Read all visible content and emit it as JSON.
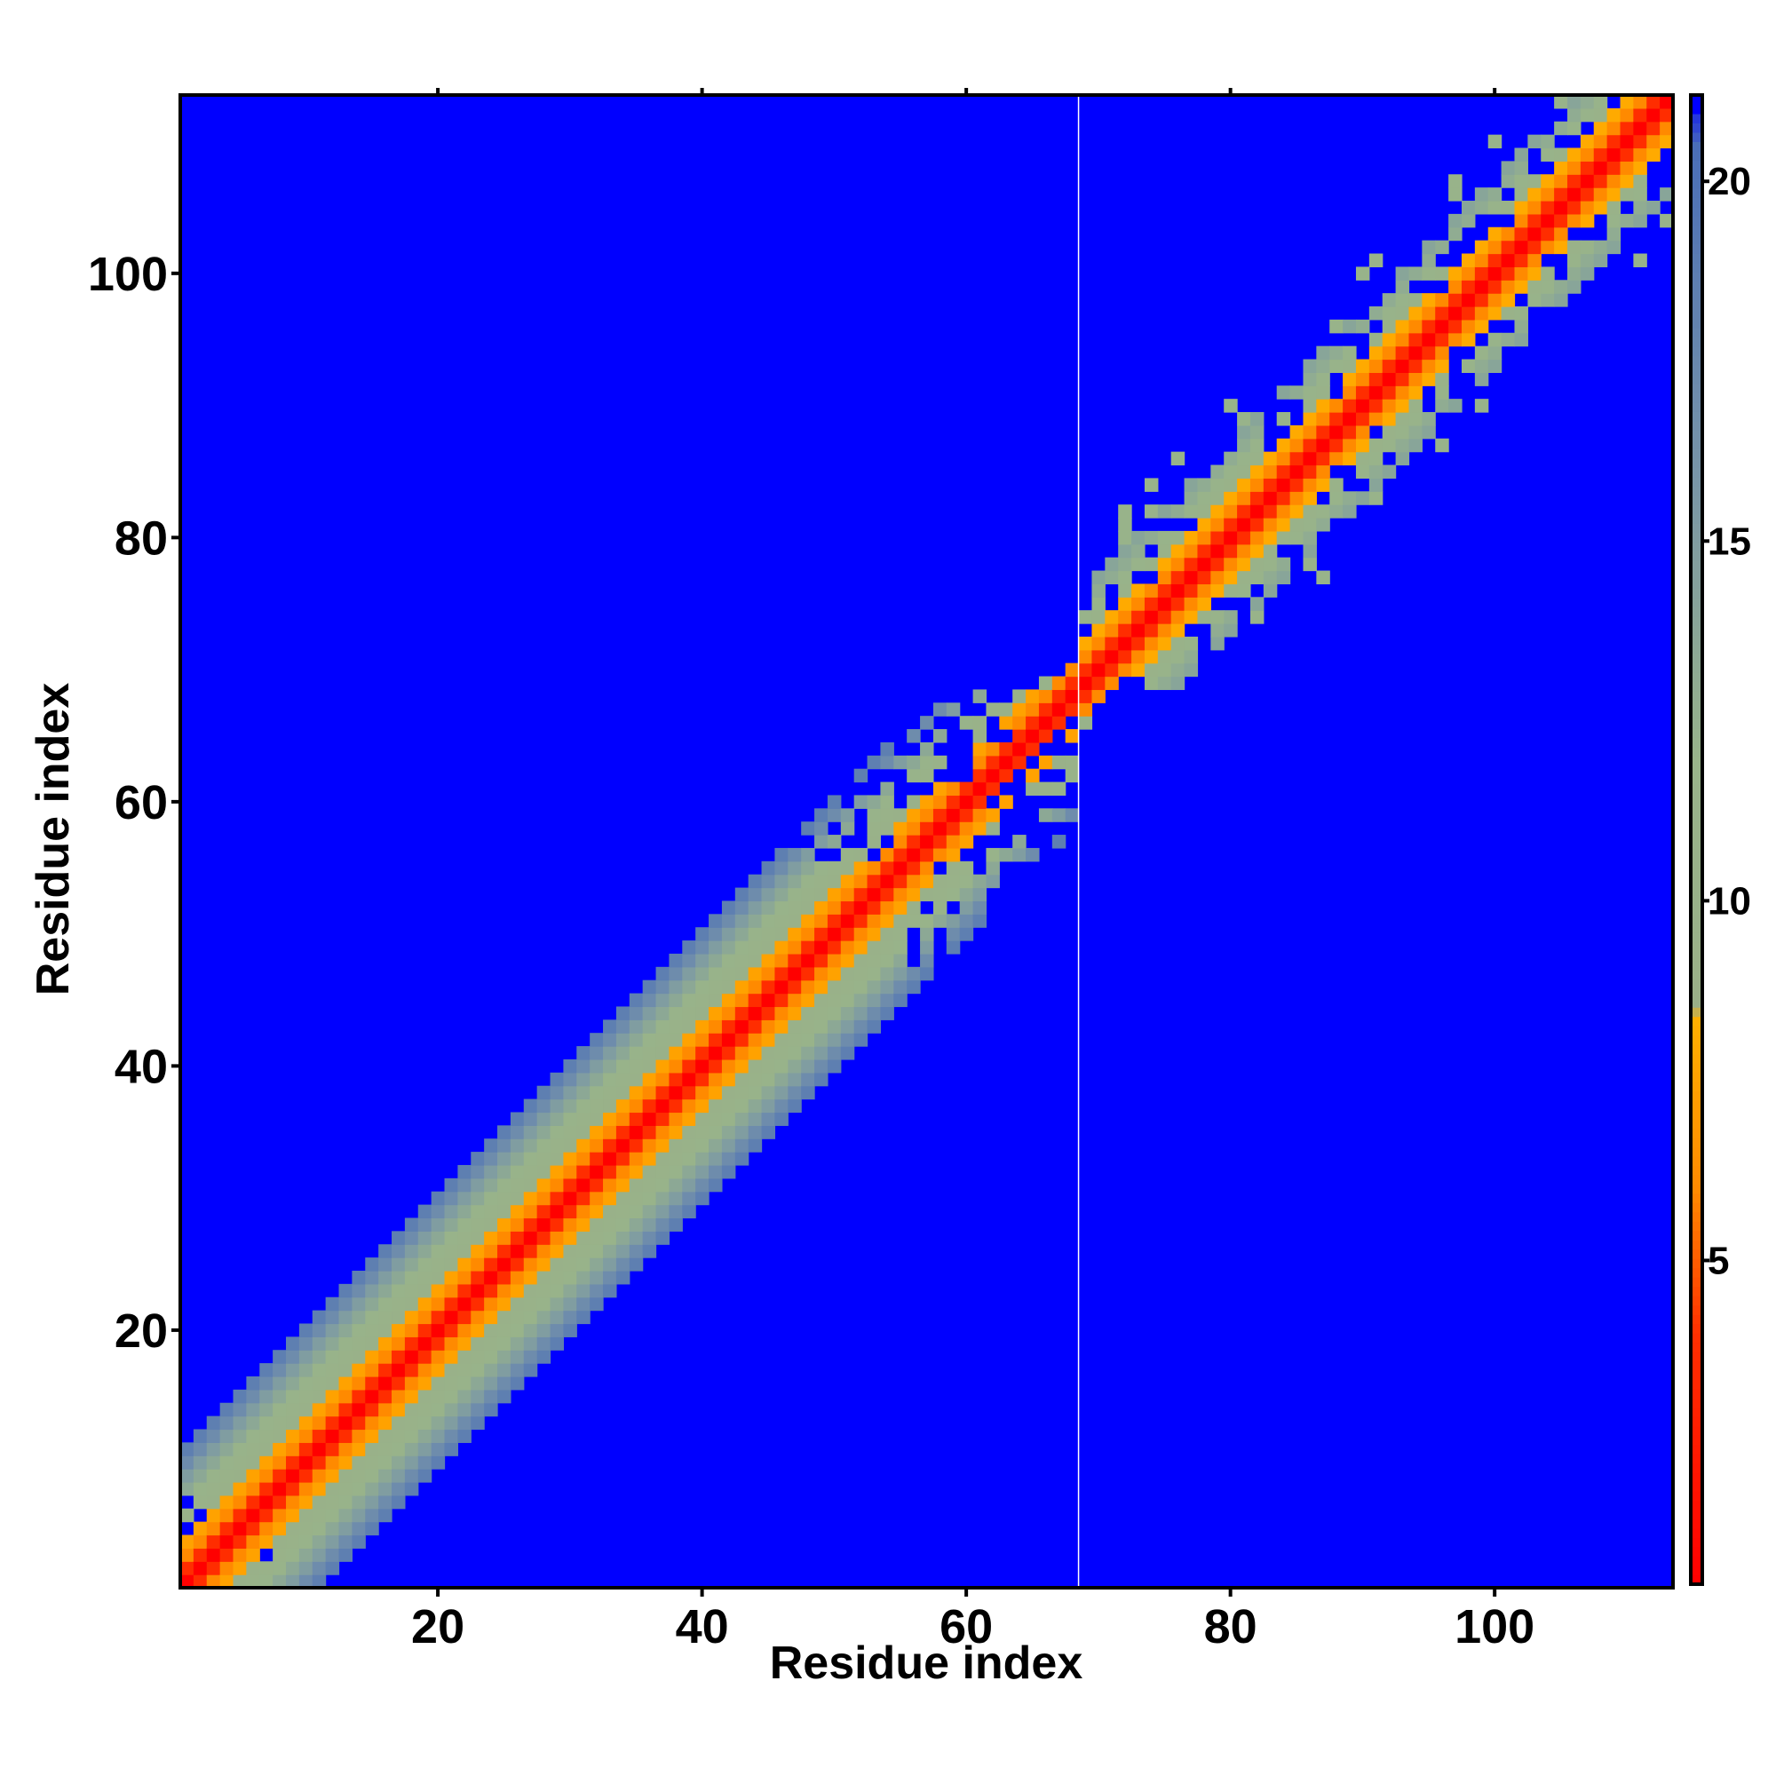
{
  "chart_data": {
    "type": "heatmap",
    "title": "",
    "xlabel": "Residue index",
    "ylabel": "Residue index",
    "n_residues": 113,
    "xlim": [
      0.5,
      113.5
    ],
    "ylim": [
      0.5,
      113.5
    ],
    "x_ticks": [
      20,
      40,
      60,
      80,
      100
    ],
    "y_ticks": [
      20,
      40,
      60,
      80,
      100
    ],
    "grid": false,
    "gap_column": 68.5,
    "colorbar": {
      "position": "right",
      "range": [
        0.5,
        21.2
      ],
      "ticks": [
        5,
        10,
        15,
        20
      ],
      "color_stops": [
        {
          "value": 0.5,
          "color": "#ff0000"
        },
        {
          "value": 4.0,
          "color": "#ff3000"
        },
        {
          "value": 6.0,
          "color": "#ff8a00"
        },
        {
          "value": 8.4,
          "color": "#ffb000"
        },
        {
          "value": 8.5,
          "color": "#9ab088"
        },
        {
          "value": 12.0,
          "color": "#98b48a"
        },
        {
          "value": 16.0,
          "color": "#7895a8"
        },
        {
          "value": 20.5,
          "color": "#4a6eb8"
        },
        {
          "value": 21.2,
          "color": "#0000ff"
        }
      ]
    },
    "band_profile": {
      "description_values": "approximate distance value by |i-j| for two domains",
      "domain_1": {
        "residues": [
          1,
          68
        ],
        "by_offset": [
          0,
          3.8,
          6.0,
          7.5,
          9.5,
          10.5,
          11.5,
          13.5,
          15.0,
          17.0,
          18.5
        ]
      },
      "domain_2": {
        "residues": [
          69,
          113
        ],
        "by_offset": [
          0,
          3.8,
          6.0,
          8.0,
          10.5,
          11.5,
          13.0,
          14.0
        ]
      },
      "background": 21.0
    },
    "colors": {
      "background_cell": "#0000ff",
      "near": "#ff0000",
      "mid": "#ff8a00",
      "far": "#9ab088"
    }
  }
}
